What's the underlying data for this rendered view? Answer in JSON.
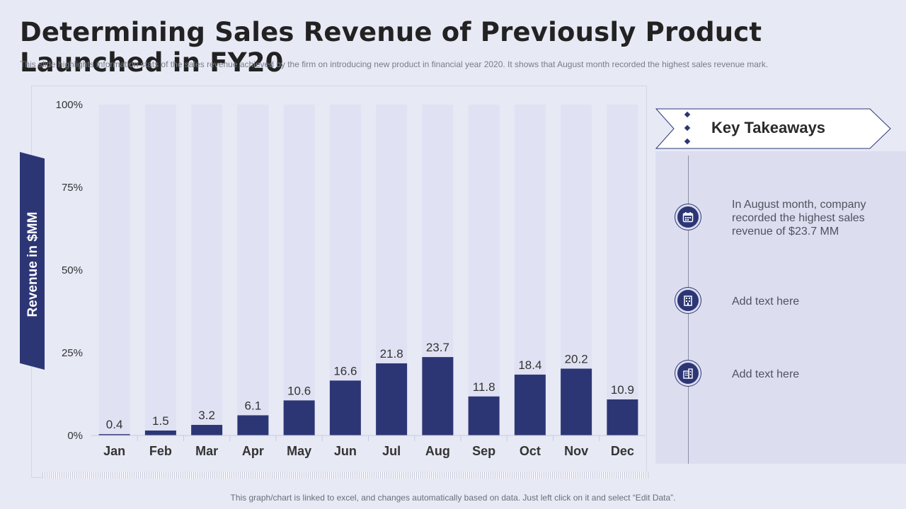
{
  "title": "Determining Sales Revenue of Previously Product Launched in FY20",
  "subtitle": "This slide highlights information  stats of the sales revenue  achieved  by the firm on introducing new product in financial  year 2020. It shows that August month recorded the highest sales revenue  mark.",
  "footer": "This graph/chart is linked to excel, and changes automatically based on data. Just left click on it and select “Edit Data”.",
  "colors": {
    "bar": "#2d3675",
    "track": "#e0e2f3",
    "background": "#e7e9f5",
    "accent": "#2d3675"
  },
  "chart_data": {
    "type": "bar",
    "title": "Determining Sales Revenue of Previously Product Launched in FY20",
    "xlabel": "",
    "ylabel": "Revenue in $MM",
    "categories": [
      "Jan",
      "Feb",
      "Mar",
      "Apr",
      "May",
      "Jun",
      "Jul",
      "Aug",
      "Sep",
      "Oct",
      "Nov",
      "Dec"
    ],
    "values": [
      0.4,
      1.5,
      3.2,
      6.1,
      10.6,
      16.6,
      21.8,
      23.7,
      11.8,
      18.4,
      20.2,
      10.9
    ],
    "data_labels": [
      "0.4",
      "1.5",
      "3.2",
      "6.1",
      "10.6",
      "16.6",
      "21.8",
      "23.7",
      "11.8",
      "18.4",
      "20.2",
      "10.9"
    ],
    "ylim": [
      0,
      100
    ],
    "yticks": [
      0,
      25,
      50,
      75,
      100
    ],
    "ytick_labels": [
      "0%",
      "25%",
      "50%",
      "75%",
      "100%"
    ],
    "grid": false,
    "legend": "none"
  },
  "takeaways": {
    "title": "Key Takeaways",
    "items": [
      {
        "icon": "calendar-icon",
        "text": "In August month, company recorded the highest sales revenue  of $23.7 MM"
      },
      {
        "icon": "building-icon",
        "text": "Add text here"
      },
      {
        "icon": "office-icon",
        "text": "Add text here"
      }
    ]
  }
}
